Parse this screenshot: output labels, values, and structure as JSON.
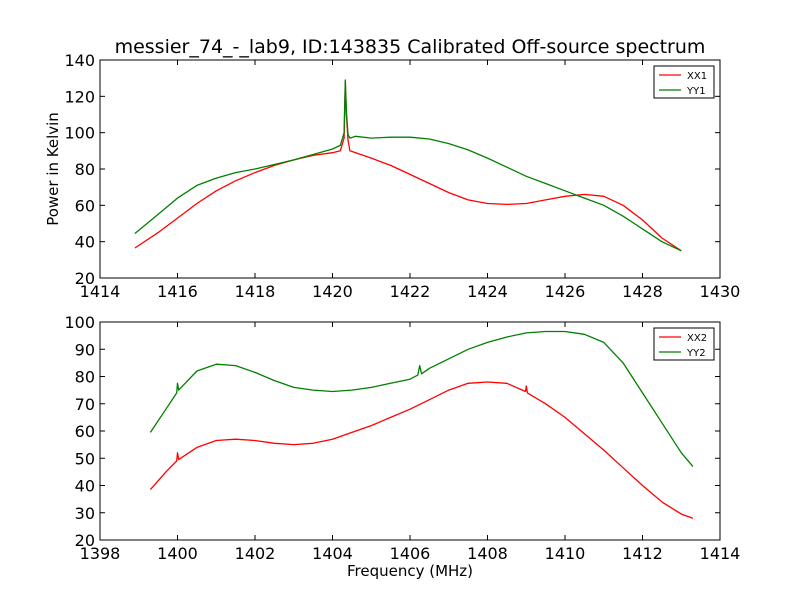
{
  "chart_data": [
    {
      "type": "line",
      "title": "messier_74_-_lab9, ID:143835 Calibrated Off-source spectrum",
      "xlabel": "",
      "ylabel": "Power in Kelvin",
      "xlim": [
        1414,
        1430
      ],
      "ylim": [
        20,
        140
      ],
      "xticks": [
        1414,
        1416,
        1418,
        1420,
        1422,
        1424,
        1426,
        1428,
        1430
      ],
      "yticks": [
        20,
        40,
        60,
        80,
        100,
        120,
        140
      ],
      "legend_position": "top-right",
      "series": [
        {
          "name": "XX1",
          "color": "#ff0000",
          "x": [
            1414.9,
            1415.5,
            1416.0,
            1416.5,
            1417.0,
            1417.5,
            1418.0,
            1418.5,
            1419.0,
            1419.5,
            1420.0,
            1420.2,
            1420.3,
            1420.33,
            1420.36,
            1420.4,
            1420.45,
            1420.6,
            1421.0,
            1421.5,
            1422.0,
            1422.5,
            1423.0,
            1423.5,
            1424.0,
            1424.5,
            1425.0,
            1425.5,
            1426.0,
            1426.5,
            1427.0,
            1427.5,
            1428.0,
            1428.5,
            1429.0
          ],
          "y": [
            36.5,
            45,
            53,
            61,
            68,
            73.5,
            78,
            82,
            85,
            87.5,
            89,
            90,
            97,
            128,
            110,
            96,
            90,
            89,
            86,
            82,
            77,
            72,
            67,
            63,
            61,
            60.5,
            61,
            63,
            65,
            66,
            65,
            60,
            52,
            42,
            35
          ]
        },
        {
          "name": "YY1",
          "color": "#008000",
          "x": [
            1414.9,
            1415.5,
            1416.0,
            1416.5,
            1417.0,
            1417.5,
            1418.0,
            1418.5,
            1419.0,
            1419.5,
            1420.0,
            1420.2,
            1420.3,
            1420.33,
            1420.36,
            1420.4,
            1420.45,
            1420.6,
            1421.0,
            1421.5,
            1422.0,
            1422.5,
            1423.0,
            1423.5,
            1424.0,
            1424.5,
            1425.0,
            1425.5,
            1426.0,
            1426.5,
            1427.0,
            1427.5,
            1428.0,
            1428.5,
            1429.0
          ],
          "y": [
            44.5,
            55,
            64,
            71,
            75,
            78,
            80,
            82.5,
            85,
            88,
            91,
            93,
            100,
            129,
            112,
            99,
            97,
            98,
            97,
            97.5,
            97.5,
            96.5,
            94,
            90.5,
            86,
            81,
            76,
            72,
            68,
            64,
            60,
            54,
            47,
            40,
            35
          ]
        }
      ]
    },
    {
      "type": "line",
      "title": "",
      "xlabel": "Frequency (MHz)",
      "ylabel": "",
      "xlim": [
        1398,
        1414
      ],
      "ylim": [
        20,
        100
      ],
      "xticks": [
        1398,
        1400,
        1402,
        1404,
        1406,
        1408,
        1410,
        1412,
        1414
      ],
      "yticks": [
        20,
        30,
        40,
        50,
        60,
        70,
        80,
        90,
        100
      ],
      "legend_position": "top-right",
      "series": [
        {
          "name": "XX2",
          "color": "#ff0000",
          "x": [
            1399.3,
            1399.7,
            1399.98,
            1400.0,
            1400.03,
            1400.5,
            1401.0,
            1401.5,
            1402.0,
            1402.5,
            1403.0,
            1403.5,
            1404.0,
            1404.5,
            1405.0,
            1405.5,
            1406.0,
            1406.5,
            1407.0,
            1407.5,
            1408.0,
            1408.5,
            1408.98,
            1409.0,
            1409.03,
            1409.5,
            1410.0,
            1410.5,
            1411.0,
            1411.5,
            1412.0,
            1412.5,
            1413.0,
            1413.3
          ],
          "y": [
            38.5,
            45,
            49,
            52,
            49.5,
            54,
            56.5,
            57,
            56.5,
            55.5,
            55,
            55.5,
            57,
            59.5,
            62,
            65,
            68,
            71.5,
            75,
            77.5,
            78,
            77.5,
            74.5,
            76.5,
            74,
            70,
            65,
            59,
            53,
            46.5,
            40,
            34,
            29.5,
            28
          ]
        },
        {
          "name": "YY2",
          "color": "#008000",
          "x": [
            1399.3,
            1399.7,
            1399.98,
            1400.0,
            1400.03,
            1400.5,
            1401.0,
            1401.5,
            1402.0,
            1402.5,
            1403.0,
            1403.5,
            1404.0,
            1404.5,
            1405.0,
            1405.5,
            1406.0,
            1406.2,
            1406.25,
            1406.3,
            1406.5,
            1407.0,
            1407.5,
            1408.0,
            1408.5,
            1409.0,
            1409.5,
            1410.0,
            1410.5,
            1411.0,
            1411.5,
            1412.0,
            1412.5,
            1413.0,
            1413.3
          ],
          "y": [
            59.5,
            68,
            74,
            77.5,
            75,
            82,
            84.5,
            84,
            81.5,
            78.5,
            76,
            75,
            74.5,
            75,
            76,
            77.5,
            79,
            80.5,
            84,
            81,
            83,
            86.5,
            90,
            92.5,
            94.5,
            96,
            96.5,
            96.5,
            95.5,
            92.5,
            85,
            74,
            63,
            52,
            47
          ]
        }
      ]
    }
  ]
}
